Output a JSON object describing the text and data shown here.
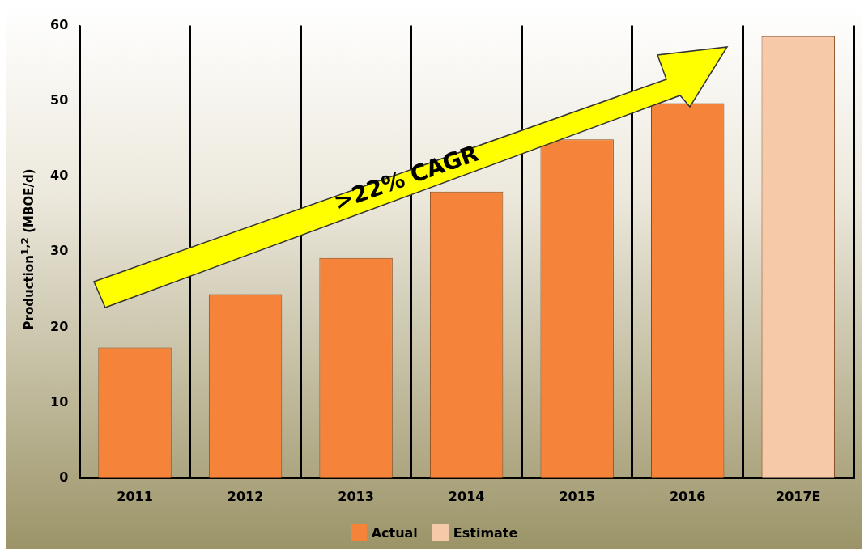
{
  "chart_data": {
    "type": "bar",
    "ylabel": "Production$^{1,2}$ (MBOE/d)",
    "categories": [
      "2011",
      "2012",
      "2013",
      "2014",
      "2015",
      "2016",
      "2017E"
    ],
    "stacked": true,
    "series": [
      {
        "name": "Actual",
        "color": "#f5843a",
        "values": [
          17.3,
          24.4,
          29.2,
          38.0,
          44.9,
          49.7,
          null
        ]
      },
      {
        "name": "Estimate",
        "color": "#f6c9a8",
        "values": [
          null,
          null,
          null,
          null,
          null,
          null,
          58.6
        ]
      }
    ],
    "ylim": [
      0,
      60
    ],
    "yticks": [
      0,
      10,
      20,
      30,
      40,
      50,
      60
    ],
    "grid": "x",
    "legend": "bottom",
    "annotations": [
      ">22% CAGR"
    ]
  }
}
